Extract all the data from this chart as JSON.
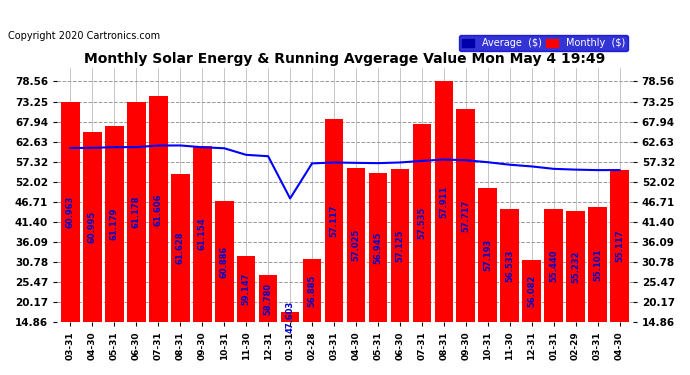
{
  "title": "Monthly Solar Energy & Running Avgerage Value Mon May 4 19:49",
  "copyright": "Copyright 2020 Cartronics.com",
  "categories": [
    "03-31",
    "04-30",
    "05-31",
    "06-30",
    "07-31",
    "08-31",
    "09-30",
    "10-31",
    "11-30",
    "12-31",
    "01-31",
    "02-28",
    "03-31",
    "04-30",
    "05-31",
    "06-30",
    "07-31",
    "08-31",
    "09-30",
    "10-31",
    "11-30",
    "12-31",
    "01-31",
    "02-29",
    "03-31",
    "04-30"
  ],
  "monthly_values": [
    73.25,
    65.31,
    66.81,
    73.25,
    74.59,
    54.2,
    61.54,
    47.01,
    32.47,
    27.39,
    17.47,
    31.47,
    68.59,
    55.77,
    54.35,
    55.45,
    67.25,
    78.56,
    71.35,
    50.5,
    44.71,
    31.33,
    44.82,
    44.4,
    45.32,
    55.17
  ],
  "average_values": [
    60.963,
    60.995,
    61.179,
    61.178,
    61.606,
    61.628,
    61.154,
    60.886,
    59.147,
    58.78,
    47.603,
    56.885,
    57.117,
    57.025,
    56.945,
    57.125,
    57.535,
    57.911,
    57.717,
    57.193,
    56.533,
    56.082,
    55.44,
    55.232,
    55.101,
    55.117
  ],
  "bar_color": "#ff0000",
  "line_color": "#0000ff",
  "background_color": "#ffffff",
  "plot_bg_color": "#ffffff",
  "grid_color": "#999999",
  "yticks": [
    14.86,
    20.17,
    25.47,
    30.78,
    36.09,
    41.4,
    46.71,
    52.02,
    57.32,
    62.63,
    67.94,
    73.25,
    78.56
  ],
  "ylim": [
    14.86,
    82.0
  ],
  "legend_avg_color": "#0000aa",
  "legend_monthly_color": "#ff0000",
  "legend_bg_color": "#0000cc",
  "value_fontsize": 6.0,
  "value_color": "#0000cc",
  "title_fontsize": 10,
  "copyright_fontsize": 7
}
